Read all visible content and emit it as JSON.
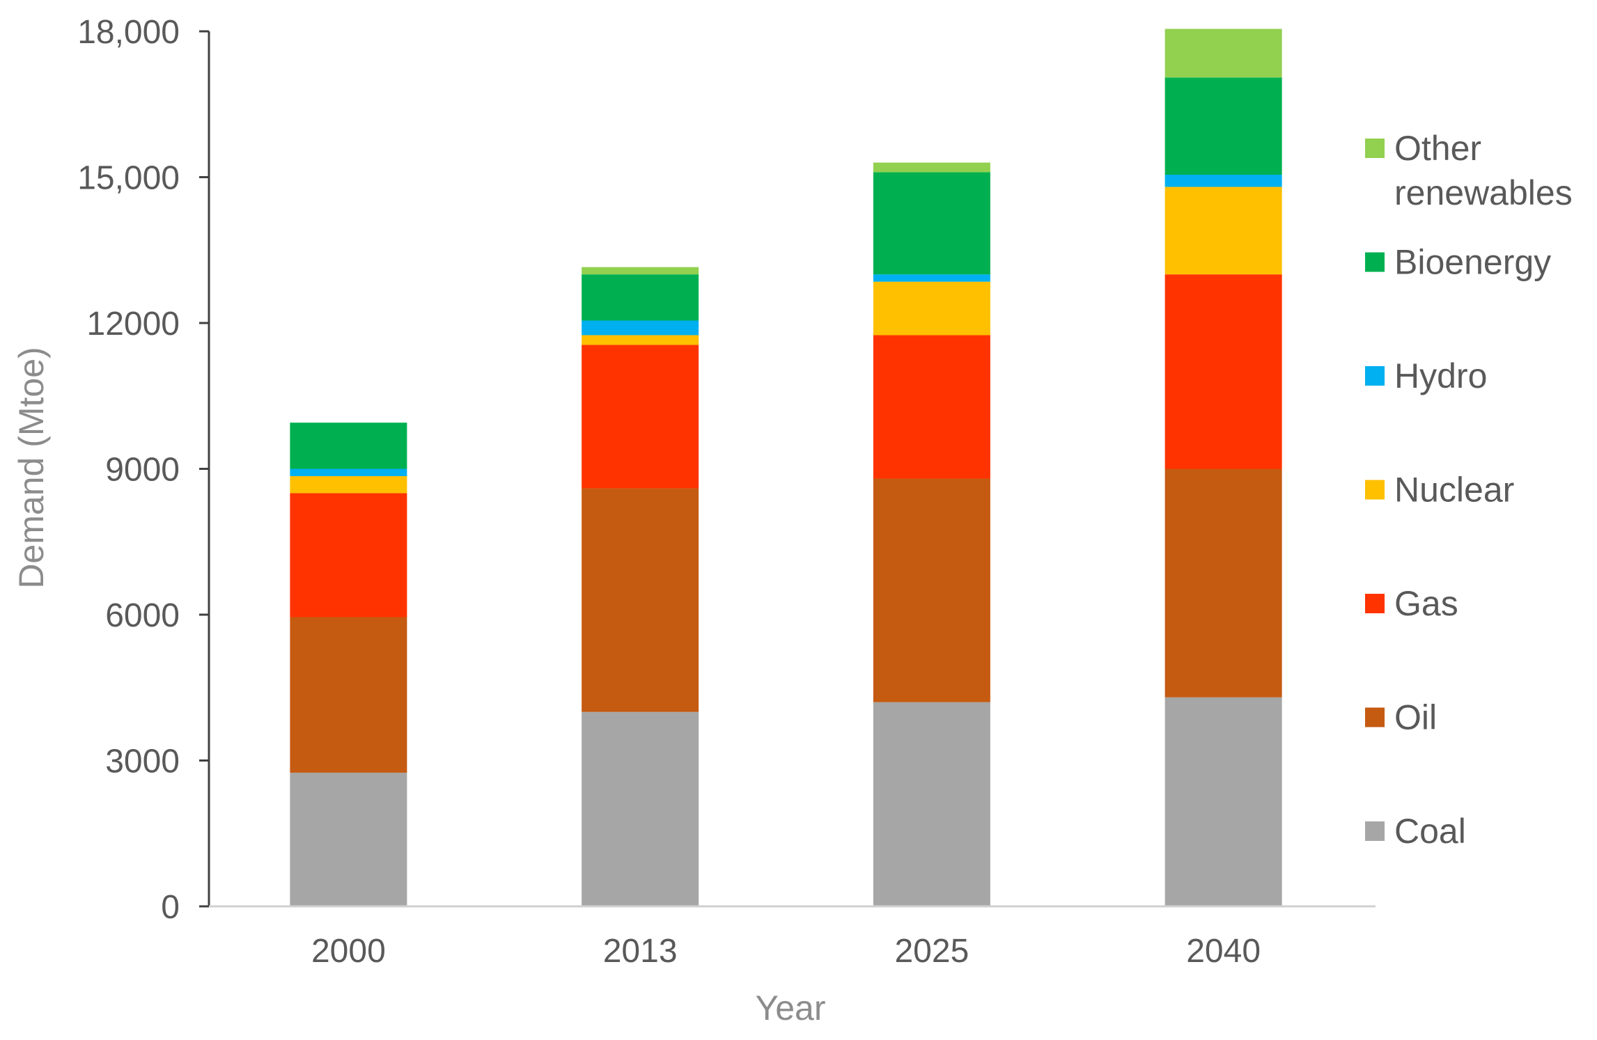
{
  "chart_data": {
    "type": "bar",
    "stacked": true,
    "xlabel": "Year",
    "ylabel": "Demand (Mtoe)",
    "categories": [
      "2000",
      "2013",
      "2025",
      "2040"
    ],
    "ylim": [
      0,
      18000
    ],
    "yticks": [
      "0",
      "3000",
      "6000",
      "9000",
      "12000",
      "15,000",
      "18,000"
    ],
    "legend_position": "right",
    "grid": false,
    "series": [
      {
        "name": "Coal",
        "color": "#a6a6a6",
        "values": [
          2750,
          4000,
          4200,
          4300
        ]
      },
      {
        "name": "Oil",
        "color": "#c55a11",
        "values": [
          3200,
          4600,
          4600,
          4700
        ]
      },
      {
        "name": "Gas",
        "color": "#ff3300",
        "values": [
          2550,
          2950,
          2950,
          4000
        ]
      },
      {
        "name": "Nuclear",
        "color": "#ffc000",
        "values": [
          350,
          200,
          1100,
          1800
        ]
      },
      {
        "name": "Hydro",
        "color": "#00b0f0",
        "values": [
          150,
          300,
          150,
          250
        ]
      },
      {
        "name": "Bioenergy",
        "color": "#00b050",
        "values": [
          950,
          950,
          2100,
          2000
        ]
      },
      {
        "name": "Other renewables",
        "color": "#92d050",
        "values": [
          0,
          150,
          200,
          1000
        ]
      }
    ]
  }
}
